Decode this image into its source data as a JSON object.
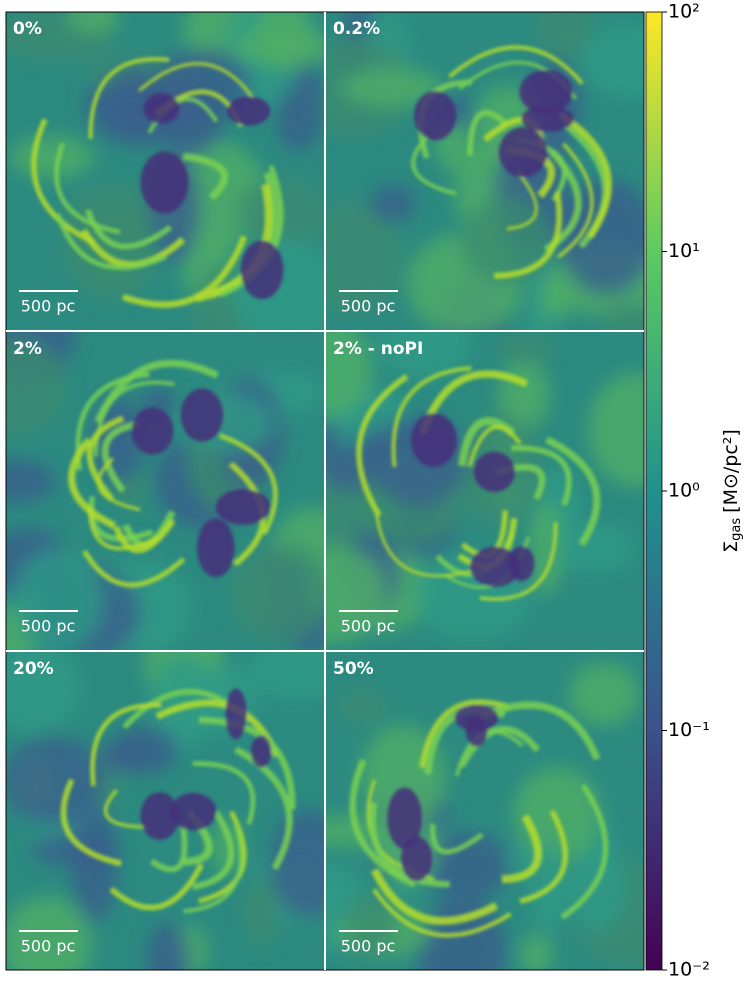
{
  "chart_data": {
    "type": "image-grid",
    "panels": [
      {
        "label": "0%"
      },
      {
        "label": "0.2%"
      },
      {
        "label": "2%"
      },
      {
        "label": "2% - noPI"
      },
      {
        "label": "20%"
      },
      {
        "label": "50%"
      }
    ],
    "scalebar_label": "500 pc",
    "colorbar": {
      "label": {
        "symbol": "Σ",
        "subscript": "gas",
        "unit": "[M⊙/pc²]"
      },
      "ylim": [
        0.01,
        100
      ],
      "log": true,
      "yticks": [
        {
          "value": 100,
          "label": "10²"
        },
        {
          "value": 10,
          "label": "10¹"
        },
        {
          "value": 1,
          "label": "10⁰"
        },
        {
          "value": 0.1,
          "label": "10⁻¹"
        },
        {
          "value": 0.01,
          "label": "10⁻²"
        }
      ],
      "colors": [
        "#440154",
        "#3b528b",
        "#21918c",
        "#5ec962",
        "#fde725"
      ]
    }
  }
}
